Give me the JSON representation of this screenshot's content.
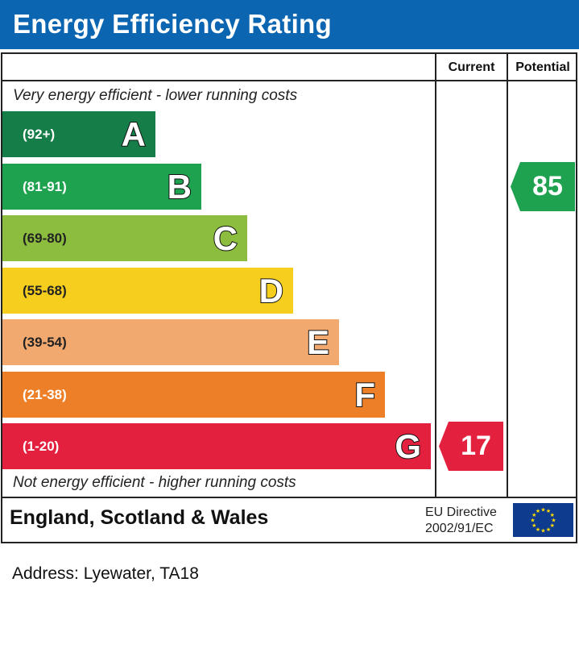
{
  "header": {
    "title": "Energy Efficiency Rating"
  },
  "columns": {
    "current": "Current",
    "potential": "Potential"
  },
  "captions": {
    "top": "Very energy efficient - lower running costs",
    "bottom": "Not energy efficient - higher running costs"
  },
  "chart_data": {
    "type": "bar",
    "title": "Energy Efficiency Rating",
    "categories": [
      "A",
      "B",
      "C",
      "D",
      "E",
      "F",
      "G"
    ],
    "bands": [
      {
        "letter": "A",
        "range": "(92+)",
        "color": "#157d47"
      },
      {
        "letter": "B",
        "range": "(81-91)",
        "color": "#1ea24f"
      },
      {
        "letter": "C",
        "range": "(69-80)",
        "color": "#8cbd3f"
      },
      {
        "letter": "D",
        "range": "(55-68)",
        "color": "#f5ce1e"
      },
      {
        "letter": "E",
        "range": "(39-54)",
        "color": "#f1a96f"
      },
      {
        "letter": "F",
        "range": "(21-38)",
        "color": "#ec7f27"
      },
      {
        "letter": "G",
        "range": "(1-20)",
        "color": "#e3203d"
      }
    ],
    "current": {
      "value": "17",
      "band": "G",
      "color": "#e3203d"
    },
    "potential": {
      "value": "85",
      "band": "B",
      "color": "#1ea24f"
    }
  },
  "footer": {
    "region": "England, Scotland & Wales",
    "eu_line1": "EU Directive",
    "eu_line2": "2002/91/EC",
    "flag_icon": "eu-flag-icon"
  },
  "address": "Address: Lyewater, TA18"
}
